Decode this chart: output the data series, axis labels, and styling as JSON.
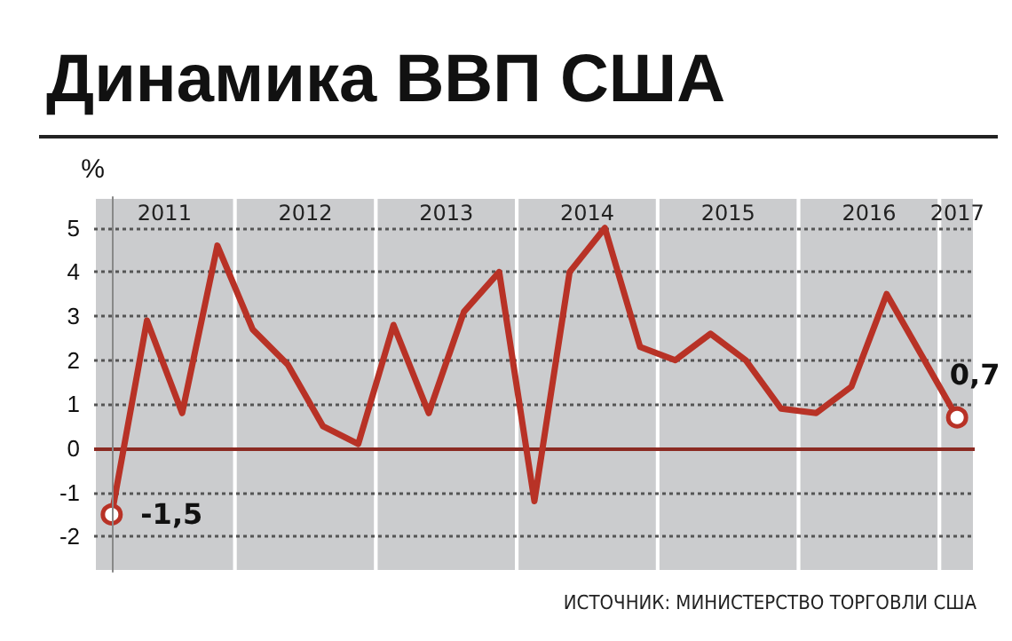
{
  "chart_data": {
    "type": "line",
    "title": "Динамика ВВП США",
    "ylabel": "%",
    "annotations": [
      "2011",
      "2012",
      "2013",
      "2014",
      "2015",
      "2016",
      "2017",
      "ИСТОЧНИК: МИНИСТЕРСТВО ТОРГОВЛИ США"
    ],
    "categories": [
      null,
      null,
      null,
      null,
      null,
      null,
      null,
      null,
      null,
      null,
      null,
      null,
      null,
      null,
      null,
      null,
      null,
      null,
      null,
      null,
      null,
      null,
      null,
      null,
      null
    ],
    "series": [
      {
        "color": "#b83226",
        "values": [
          -1.5,
          2.9,
          0.8,
          4.6,
          2.7,
          1.9,
          0.5,
          0.1,
          2.8,
          0.8,
          3.1,
          4.0,
          -1.2,
          4.0,
          5.0,
          2.3,
          2.0,
          2.6,
          2.0,
          0.9,
          0.8,
          1.4,
          3.5,
          2.1,
          0.7
        ],
        "value_labels": [
          "-1,5",
          null,
          null,
          null,
          null,
          null,
          null,
          null,
          null,
          null,
          null,
          null,
          null,
          null,
          null,
          null,
          null,
          null,
          null,
          null,
          null,
          null,
          null,
          null,
          "0,7"
        ]
      }
    ],
    "ylim": [
      -2.8,
      5.7
    ],
    "yticks": [
      -2,
      -1,
      0,
      1,
      2,
      3,
      4,
      5
    ],
    "grid": "y",
    "marker": "none",
    "line_style": "solid",
    "ref_lines": [
      {
        "axis": "y",
        "value": 0,
        "color": "#8b2a22"
      }
    ]
  }
}
